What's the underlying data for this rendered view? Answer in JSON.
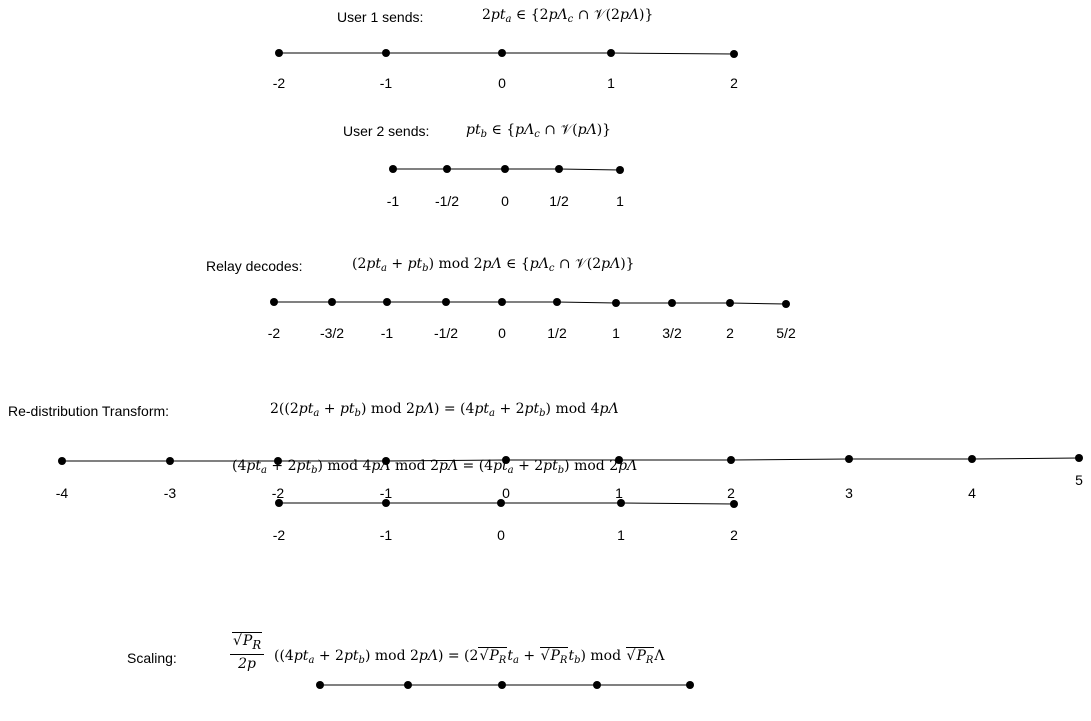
{
  "user1": {
    "label": "User 1 sends:",
    "formula_parts": [
      "2",
      "pt",
      "a",
      " ∈ {2",
      "pΛ",
      "c",
      " ∩ ",
      "𝒱",
      "(2",
      "pΛ",
      ")}"
    ],
    "ticks": [
      "-2",
      "-1",
      "0",
      "1",
      "2"
    ]
  },
  "user2": {
    "label": "User 2 sends:",
    "formula_parts": [
      "pt",
      "b",
      " ∈ {",
      "pΛ",
      "c",
      " ∩ ",
      "𝒱",
      "(",
      "pΛ",
      ")}"
    ],
    "ticks": [
      "-1",
      "-1/2",
      "0",
      "1/2",
      "1"
    ]
  },
  "relay": {
    "label": "Relay decodes:",
    "formula_parts": [
      "(2",
      "pt",
      "a",
      " + ",
      "pt",
      "b",
      ")   mod 2",
      "pΛ",
      " ∈ {",
      "pΛ",
      "c",
      " ∩ ",
      "𝒱",
      "(2",
      "pΛ",
      ")}"
    ],
    "ticks": [
      "-2",
      "-3/2",
      "-1",
      "-1/2",
      "0",
      "1/2",
      "1",
      "3/2",
      "2",
      "5/2"
    ]
  },
  "redistribution": {
    "label": "Re-distribution Transform:",
    "formula_parts": [
      "2((2",
      "pt",
      "a",
      " + ",
      "pt",
      "b",
      ")   mod 2",
      "pΛ",
      ") = (4",
      "pt",
      "a",
      " + 2",
      "pt",
      "b",
      ")   mod 4",
      "pΛ"
    ],
    "ticks": [
      "-4",
      "-3",
      "-2",
      "-1",
      "0",
      "1",
      "2",
      "3",
      "4",
      "5"
    ]
  },
  "modreduce": {
    "formula_parts": [
      "(4",
      "pt",
      "a",
      " + 2",
      "pt",
      "b",
      ")   mod 4",
      "pΛ",
      "   mod 2",
      "pΛ",
      " = (4",
      "pt",
      "a",
      " + 2",
      "pt",
      "b",
      ")   mod 2",
      "pΛ"
    ],
    "ticks": [
      "-2",
      "-1",
      "0",
      "1",
      "2"
    ]
  },
  "scaling": {
    "label": "Scaling:",
    "frac_num": "P",
    "frac_num_sub": "R",
    "frac_den": "2p",
    "formula_parts": [
      "((4",
      "pt",
      "a",
      " + 2",
      "pt",
      "b",
      ")   mod 2",
      "pΛ",
      ") = (2",
      "P",
      "R",
      "t",
      "a",
      " + ",
      "P",
      "R",
      "t",
      "b",
      ")   mod ",
      "P",
      "R",
      "Λ"
    ],
    "points": 5
  }
}
